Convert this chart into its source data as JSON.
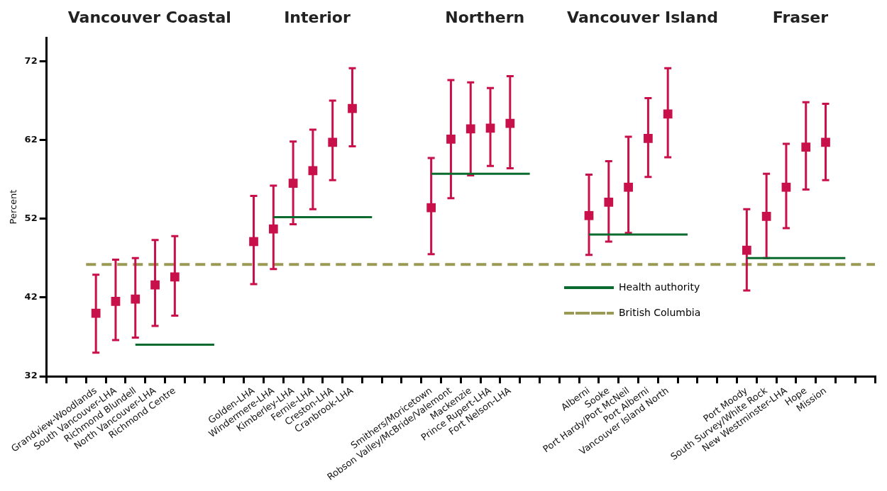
{
  "chart_data": {
    "type": "scatter",
    "ylabel": "Percent",
    "ylim": [
      32,
      75
    ],
    "yticks": [
      32,
      42,
      52,
      62,
      72
    ],
    "grid": false,
    "marker": "square",
    "legend": "bottom right",
    "categories": [
      null,
      null,
      "Grandview-Woodlands",
      "South Vancouver-LHA",
      "Richmond Blundell",
      "North Vancouver-LHA",
      "Richmond Centre",
      null,
      null,
      null,
      "Golden-LHA",
      "Windermere-LHA",
      "Kimberley-LHA",
      "Fernie-LHA",
      "Creston-LHA",
      "Cranbrook-LHA",
      null,
      null,
      null,
      "Smithers/Moricetown",
      "Robson Valley/McBride/Valemont",
      "Mackenzie",
      "Prince Rupert-LHA",
      "Fort Nelson-LHA",
      null,
      null,
      null,
      "Alberni",
      "Sooke",
      "Port Hardy/Port McNeil",
      "Port Alberni",
      "Vancouver Island North",
      null,
      null,
      null,
      "Port Moody",
      "South Survey/White Rock",
      "New Westminster-LHA",
      "Hope",
      "Mission",
      null,
      null
    ],
    "series": [
      {
        "color": "#c8104a",
        "values": [
          null,
          null,
          40.0,
          41.5,
          41.8,
          43.6,
          44.6,
          null,
          null,
          null,
          49.1,
          50.7,
          56.5,
          58.1,
          61.7,
          66.0,
          null,
          null,
          null,
          53.4,
          62.1,
          63.4,
          63.5,
          64.1,
          null,
          null,
          null,
          52.4,
          54.1,
          56.0,
          62.2,
          65.3,
          null,
          null,
          null,
          48.0,
          52.3,
          56.0,
          61.1,
          61.7,
          null,
          null
        ],
        "errors": [
          null,
          null,
          [
            35.0,
            44.9
          ],
          [
            36.6,
            46.8
          ],
          [
            36.9,
            47.0
          ],
          [
            38.4,
            49.3
          ],
          [
            39.7,
            49.8
          ],
          null,
          null,
          null,
          [
            43.7,
            54.9
          ],
          [
            45.6,
            56.2
          ],
          [
            51.3,
            61.8
          ],
          [
            53.2,
            63.3
          ],
          [
            56.9,
            67.0
          ],
          [
            61.2,
            71.1
          ],
          null,
          null,
          null,
          [
            47.5,
            59.7
          ],
          [
            54.6,
            69.6
          ],
          [
            57.5,
            69.3
          ],
          [
            58.7,
            68.6
          ],
          [
            58.4,
            70.1
          ],
          null,
          null,
          null,
          [
            47.4,
            57.6
          ],
          [
            49.1,
            59.3
          ],
          [
            50.2,
            62.4
          ],
          [
            57.3,
            67.3
          ],
          [
            59.8,
            71.1
          ],
          null,
          null,
          null,
          [
            42.9,
            53.2
          ],
          [
            47.0,
            57.7
          ],
          [
            50.8,
            61.5
          ],
          [
            55.7,
            66.8
          ],
          [
            56.9,
            66.6
          ],
          null,
          null
        ]
      },
      {
        "type": "line",
        "name": "Health authority",
        "color": "#0b6b2e",
        "marker": "none",
        "values": [
          null,
          null,
          null,
          null,
          36.0,
          36.0,
          36.0,
          36.0,
          36.0,
          null,
          null,
          52.2,
          52.2,
          52.2,
          52.2,
          52.2,
          52.2,
          null,
          null,
          57.7,
          57.7,
          57.7,
          57.7,
          57.7,
          57.7,
          null,
          null,
          50.0,
          50.0,
          50.0,
          50.0,
          50.0,
          50.0,
          null,
          null,
          47.0,
          47.0,
          47.0,
          47.0,
          47.0,
          47.0,
          null
        ]
      }
    ],
    "ref_lines": [
      {
        "axis": "y",
        "value": 46.2,
        "label": "British Columbia",
        "color": "#9a9a55",
        "line_style": "dashed"
      }
    ],
    "annotations": [
      "Vancouver Coastal",
      "Interior",
      "Northern",
      "Vancouver Island",
      "Fraser"
    ]
  }
}
